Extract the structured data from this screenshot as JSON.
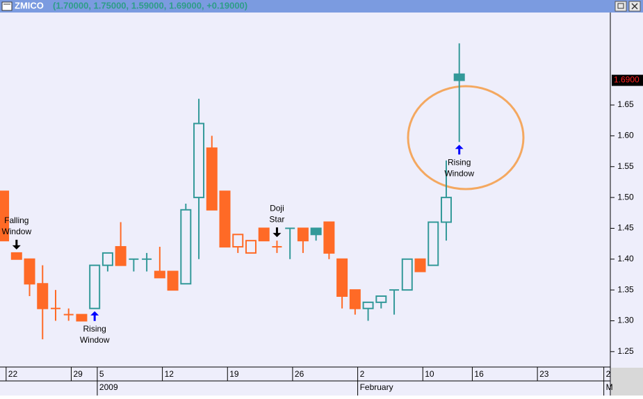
{
  "window": {
    "symbol": "ZMICO",
    "quote": "(1.70000, 1.75000, 1.59000, 1.69000, +0.19000)"
  },
  "chart_data": {
    "type": "candlestick",
    "open": [
      1.51,
      1.41,
      1.4,
      1.36,
      1.32,
      1.31,
      1.31,
      1.32,
      1.39,
      1.42,
      1.4,
      1.4,
      1.38,
      1.38,
      1.36,
      1.5,
      1.58,
      1.51,
      1.42,
      1.41,
      1.45,
      1.42,
      1.45,
      1.45,
      1.45,
      1.46,
      1.4,
      1.35,
      1.32,
      1.33,
      1.35,
      1.35,
      1.4,
      1.39,
      1.46,
      1.7
    ],
    "high": [
      1.51,
      1.41,
      1.4,
      1.39,
      1.35,
      1.32,
      1.31,
      1.39,
      1.41,
      1.46,
      1.4,
      1.41,
      1.42,
      1.38,
      1.49,
      1.66,
      1.6,
      1.51,
      1.44,
      1.43,
      1.45,
      1.43,
      1.45,
      1.45,
      1.45,
      1.46,
      1.4,
      1.35,
      1.33,
      1.34,
      1.35,
      1.4,
      1.4,
      1.46,
      1.56,
      1.75
    ],
    "low": [
      1.43,
      1.4,
      1.34,
      1.27,
      1.3,
      1.3,
      1.3,
      1.32,
      1.38,
      1.39,
      1.38,
      1.38,
      1.37,
      1.35,
      1.36,
      1.4,
      1.48,
      1.42,
      1.41,
      1.41,
      1.43,
      1.41,
      1.4,
      1.41,
      1.43,
      1.4,
      1.32,
      1.31,
      1.3,
      1.32,
      1.31,
      1.35,
      1.38,
      1.39,
      1.43,
      1.59
    ],
    "close": [
      1.43,
      1.4,
      1.36,
      1.32,
      1.32,
      1.31,
      1.3,
      1.39,
      1.41,
      1.39,
      1.4,
      1.4,
      1.37,
      1.35,
      1.48,
      1.62,
      1.48,
      1.42,
      1.44,
      1.43,
      1.43,
      1.42,
      1.45,
      1.43,
      1.44,
      1.41,
      1.34,
      1.32,
      1.33,
      1.34,
      1.35,
      1.4,
      1.38,
      1.46,
      1.5,
      1.69
    ],
    "colors": [
      "#ff6a26",
      "#ff6a26",
      "#ff6a26",
      "#ff6a26",
      "#ff6a26",
      "#ff6a26",
      "#ff6a26",
      "#339999",
      "#339999",
      "#ff6a26",
      "#339999",
      "#339999",
      "#ff6a26",
      "#ff6a26",
      "#339999",
      "#339999",
      "#ff6a26",
      "#ff6a26",
      "#ff6a26",
      "#ff6a26",
      "#ff6a26",
      "#ff6a26",
      "#339999",
      "#ff6a26",
      "#339999",
      "#ff6a26",
      "#ff6a26",
      "#ff6a26",
      "#339999",
      "#339999",
      "#339999",
      "#339999",
      "#ff6a26",
      "#339999",
      "#339999",
      "#339999"
    ],
    "ylim": [
      1.225,
      1.8
    ],
    "yticks": [
      {
        "value": 1.25,
        "label": "1.25"
      },
      {
        "value": 1.3,
        "label": "1.30"
      },
      {
        "value": 1.35,
        "label": "1.35"
      },
      {
        "value": 1.4,
        "label": "1.40"
      },
      {
        "value": 1.45,
        "label": "1.45"
      },
      {
        "value": 1.5,
        "label": "1.50"
      },
      {
        "value": 1.55,
        "label": "1.55"
      },
      {
        "value": 1.6,
        "label": "1.60"
      },
      {
        "value": 1.65,
        "label": "1.65"
      }
    ],
    "xlim": [
      -0.27,
      46.6
    ],
    "xticks": [
      {
        "value": 0.2,
        "label": "22"
      },
      {
        "value": 5.2,
        "label": "29"
      },
      {
        "value": 7.2,
        "label": "5"
      },
      {
        "value": 12.2,
        "label": "12"
      },
      {
        "value": 17.2,
        "label": "19"
      },
      {
        "value": 22.2,
        "label": "26"
      },
      {
        "value": 27.2,
        "label": "2"
      },
      {
        "value": 32.2,
        "label": "10"
      },
      {
        "value": 36,
        "label": "16"
      },
      {
        "value": 41,
        "label": "23"
      },
      {
        "value": 46.1,
        "label": "2"
      }
    ],
    "xticks2": [
      {
        "value": 7.2,
        "label": "2009"
      },
      {
        "value": 27.2,
        "label": "February"
      },
      {
        "value": 46.1,
        "label": "M"
      }
    ],
    "last_price": {
      "value": 1.69,
      "label": "1.6900"
    },
    "annotations": [
      {
        "index": 1,
        "direction": "down",
        "color": "#000000",
        "lines": [
          "Falling",
          "Window"
        ]
      },
      {
        "index": 7,
        "direction": "up",
        "color": "#0000ff",
        "lines": [
          "Rising",
          "Window"
        ]
      },
      {
        "index": 21,
        "direction": "down",
        "color": "#000000",
        "lines": [
          "Doji",
          "Star"
        ]
      },
      {
        "index": 35,
        "direction": "up",
        "color": "#0000ff",
        "lines": [
          "Rising",
          "Window"
        ]
      }
    ]
  }
}
